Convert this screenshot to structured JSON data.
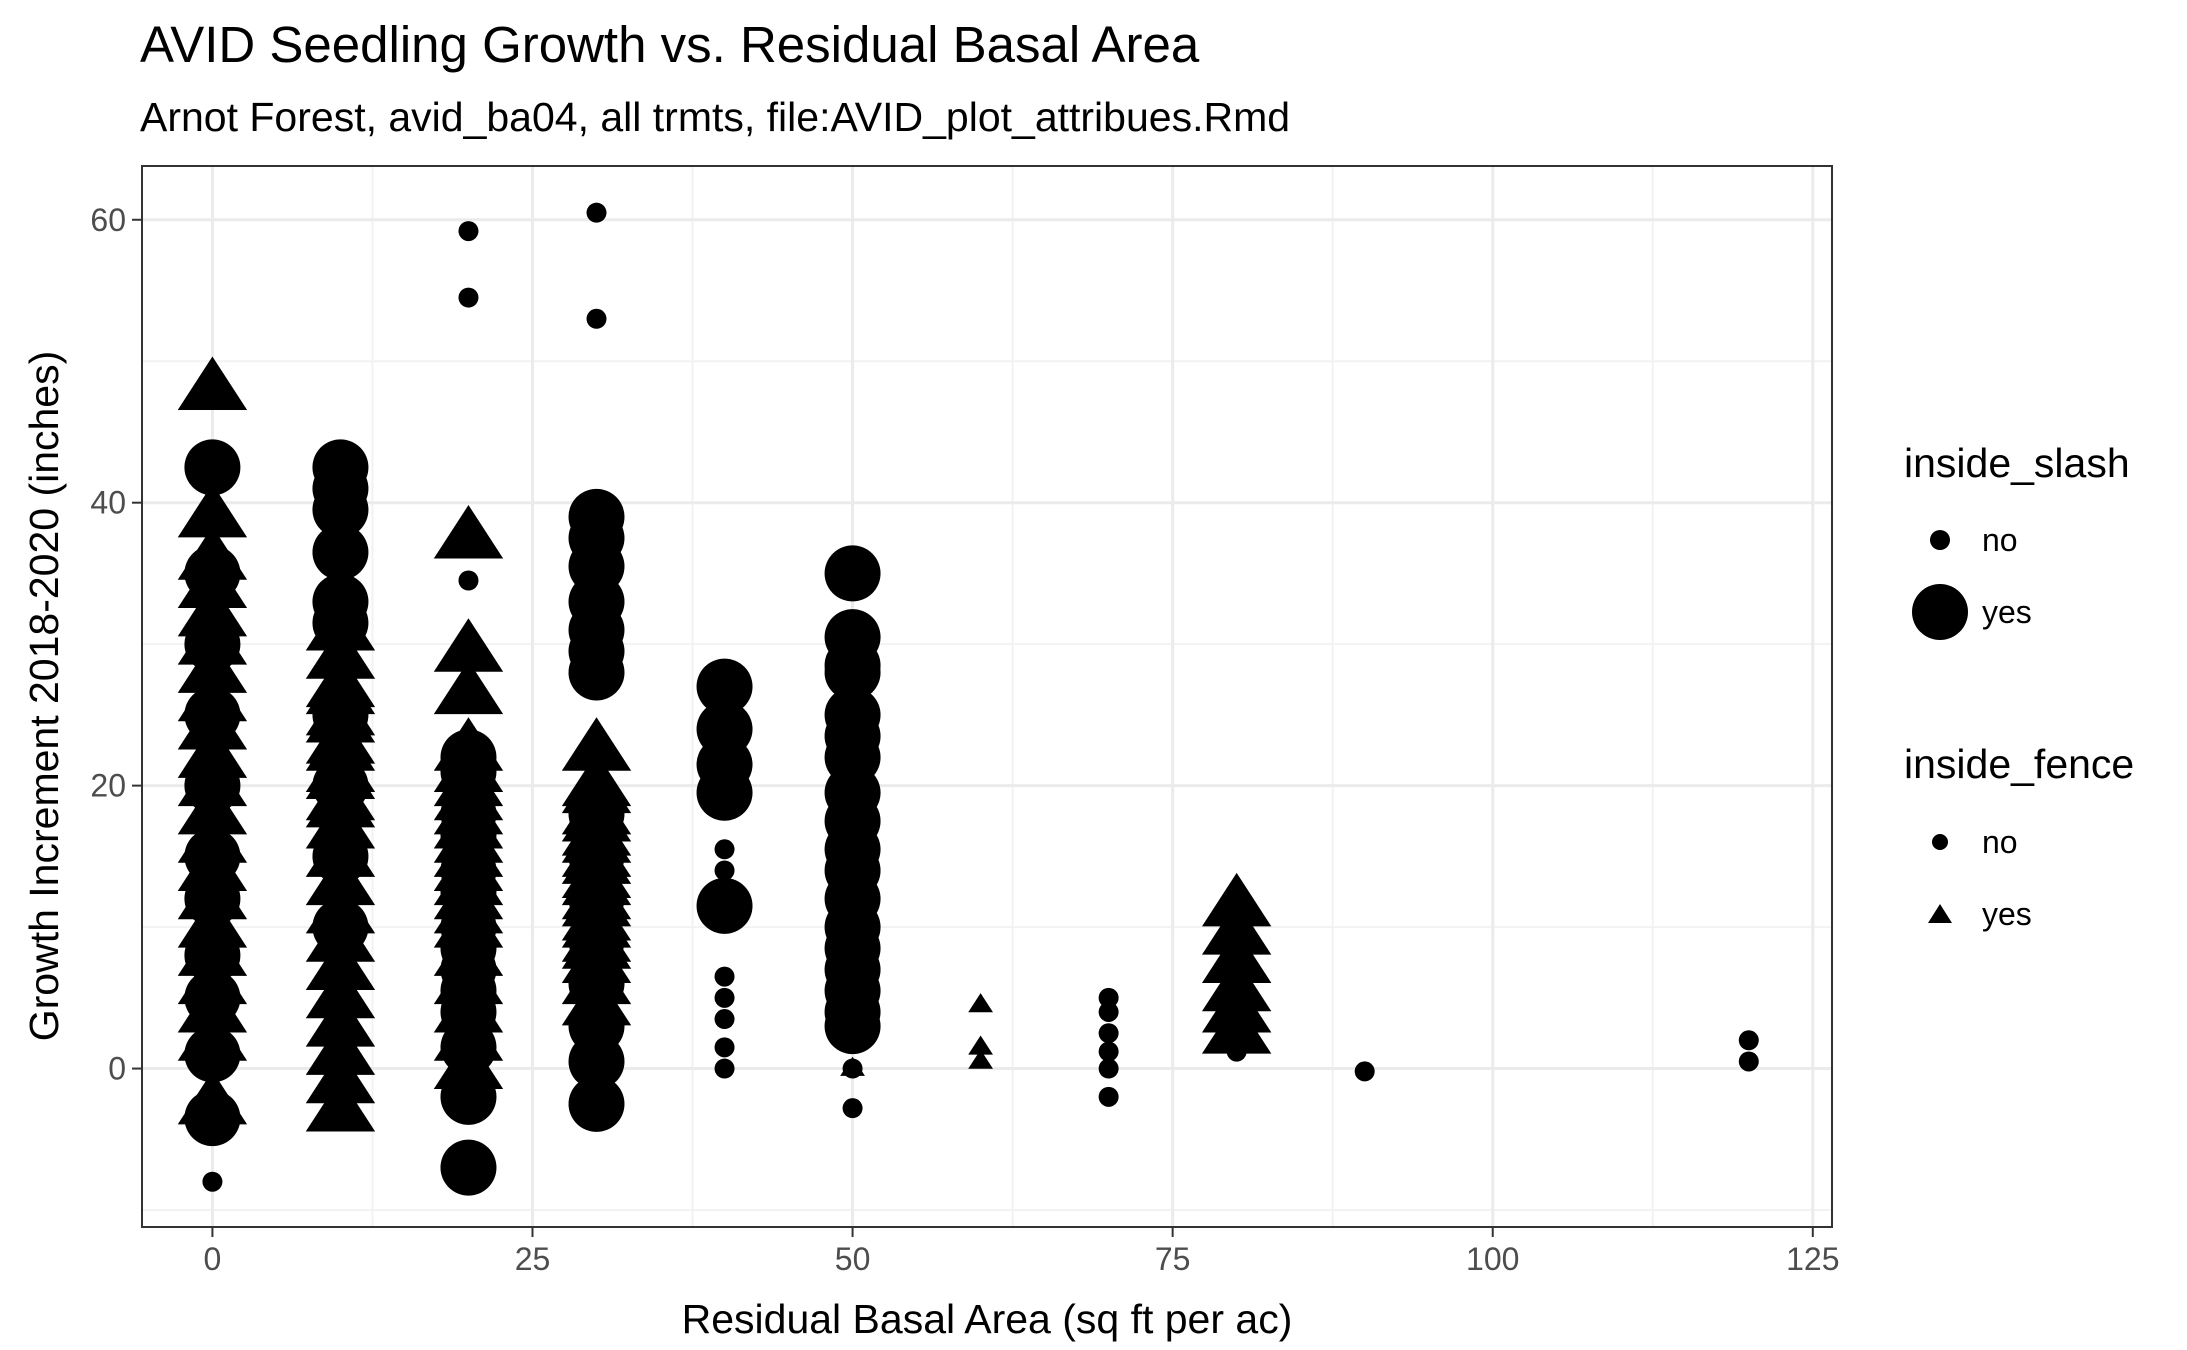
{
  "chart_data": {
    "type": "scatter",
    "title": "AVID Seedling Growth vs. Residual Basal Area",
    "subtitle": "Arnot Forest, avid_ba04, all trmts, file:AVID_plot_attribues.Rmd",
    "xlabel": "Residual Basal Area (sq ft per ac)",
    "ylabel": "Growth Increment 2018-2020 (inches)",
    "xlim": [
      -5.5,
      126.5
    ],
    "ylim": [
      -11.2,
      63.8
    ],
    "x_ticks": [
      0,
      25,
      50,
      75,
      100,
      125
    ],
    "x_tick_labels": [
      "0",
      "25",
      "50",
      "75",
      "100",
      "125"
    ],
    "y_ticks": [
      0,
      20,
      40,
      60
    ],
    "y_tick_labels": [
      "0",
      "20",
      "40",
      "60"
    ],
    "grid": true,
    "legend_position": "right",
    "legends": [
      {
        "title": "inside_slash",
        "encoding": "size",
        "entries": [
          {
            "label": "no",
            "value": "no"
          },
          {
            "label": "yes",
            "value": "yes"
          }
        ]
      },
      {
        "title": "inside_fence",
        "encoding": "shape",
        "entries": [
          {
            "label": "no",
            "value": "no"
          },
          {
            "label": "yes",
            "value": "yes"
          }
        ]
      }
    ],
    "series": [
      {
        "slash": "no",
        "fence": "no",
        "x": [
          0,
          20,
          20,
          20,
          30,
          30,
          30,
          40,
          40,
          40,
          40,
          40,
          40,
          40,
          50,
          50,
          70,
          70,
          70,
          70,
          70,
          70,
          80,
          90,
          120,
          120
        ],
        "y": [
          -8,
          59.2,
          54.5,
          34.5,
          60.5,
          53,
          36,
          15.5,
          14,
          6.5,
          5,
          3.5,
          1.5,
          0,
          0,
          -2.8,
          5,
          4,
          2.5,
          1.2,
          0,
          -2,
          1.2,
          -0.2,
          2,
          0.5
        ]
      },
      {
        "slash": "yes",
        "fence": "no",
        "x": [
          0,
          0,
          0,
          0,
          0,
          0,
          0,
          0,
          0,
          0,
          0,
          10,
          10,
          10,
          10,
          10,
          10,
          10,
          10,
          10,
          10,
          20,
          20,
          20,
          20,
          20,
          20,
          20,
          20,
          20,
          20,
          20,
          20,
          20,
          20,
          30,
          30,
          30,
          30,
          30,
          30,
          30,
          30,
          30,
          30,
          30,
          30,
          30,
          30,
          30,
          40,
          40,
          40,
          40,
          40,
          50,
          50,
          50,
          50,
          50,
          50,
          50,
          50,
          50,
          50,
          50,
          50,
          50,
          50,
          50,
          50,
          50,
          50
        ],
        "y": [
          42.5,
          35,
          30,
          25,
          20,
          15,
          12,
          8,
          5,
          1,
          -3.5,
          42.5,
          41,
          39.5,
          36.5,
          33,
          31.5,
          25,
          20,
          15,
          10,
          22,
          18,
          14,
          10,
          7,
          4,
          1.5,
          -2,
          -7,
          21,
          16.5,
          12.5,
          8.5,
          5.5,
          39,
          37.5,
          35.5,
          33,
          31,
          29.5,
          28,
          18,
          15,
          12,
          9,
          6,
          3,
          0.5,
          -2.5,
          27,
          24,
          21.5,
          19.5,
          11.5,
          35,
          30.5,
          28.5,
          23.5,
          22,
          19.5,
          17.5,
          15.5,
          14,
          12,
          10,
          8.5,
          7,
          5.5,
          4,
          3,
          28,
          25
        ]
      },
      {
        "slash": "no",
        "fence": "yes",
        "x": [
          50,
          60,
          60,
          60
        ],
        "y": [
          0,
          4.5,
          1.5,
          0.5
        ]
      },
      {
        "slash": "yes",
        "fence": "yes",
        "x": [
          0,
          0,
          0,
          0,
          0,
          0,
          0,
          0,
          0,
          0,
          0,
          0,
          0,
          0,
          0,
          0,
          0,
          0,
          0,
          0,
          0,
          10,
          10,
          10,
          10,
          10,
          10,
          10,
          10,
          10,
          10,
          10,
          10,
          10,
          10,
          10,
          10,
          10,
          10,
          10,
          10,
          10,
          10,
          10,
          20,
          20,
          20,
          20,
          20,
          20,
          20,
          20,
          20,
          20,
          20,
          20,
          20,
          20,
          20,
          20,
          20,
          20,
          20,
          20,
          20,
          30,
          30,
          30,
          30,
          30,
          30,
          30,
          30,
          30,
          30,
          30,
          30,
          30,
          30,
          30,
          30,
          30,
          30,
          30,
          30,
          80,
          80,
          80,
          80,
          80,
          80
        ],
        "y": [
          48,
          39,
          36,
          34,
          32,
          30,
          28,
          26,
          24,
          22,
          20,
          18,
          16,
          14,
          12,
          10,
          8,
          6,
          4,
          2,
          -2.5,
          31,
          29,
          27,
          25,
          23,
          21,
          19,
          17,
          15,
          13,
          11,
          9,
          7,
          5,
          3,
          1,
          -1,
          -3,
          26.5,
          24.5,
          22.5,
          20.5,
          18.5,
          37.5,
          29.5,
          26.5,
          22.5,
          20,
          18,
          16,
          14,
          12,
          10,
          8,
          6,
          4,
          2,
          0,
          21,
          19,
          17,
          15,
          13,
          11,
          22.5,
          20,
          18,
          16.5,
          15,
          13.5,
          12,
          10.5,
          9,
          7.5,
          6,
          4.5,
          19.5,
          17.5,
          16,
          14.5,
          13,
          11.5,
          10,
          8.5,
          11.5,
          9.5,
          7.5,
          5.5,
          4,
          2.5
        ]
      }
    ]
  }
}
